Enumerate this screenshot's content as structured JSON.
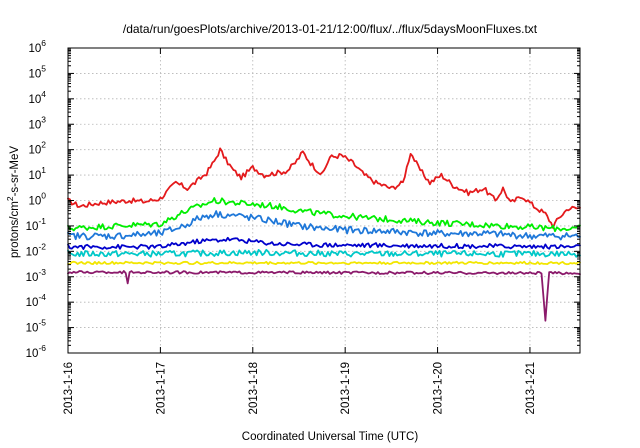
{
  "chart_data": {
    "type": "line",
    "title": "/data/run/goesPlots/archive/2013-01-21/12:00/flux/../flux/5daysMoonFluxes.txt",
    "xlabel": "Coordinated Universal Time (UTC)",
    "ylabel": {
      "base": "protons/cm",
      "sup": "2",
      "rest": "-s-sr-MeV"
    },
    "y_scale": "log",
    "ylim": [
      1e-06,
      1000000.0
    ],
    "xlim": [
      "2013-01-16 00:00",
      "2013-01-21 13:00"
    ],
    "grid": true,
    "legend": "none",
    "x_ticks": [
      "2013-1-16",
      "2013-1-17",
      "2013-1-18",
      "2013-1-19",
      "2013-1-20",
      "2013-1-21"
    ],
    "y_ticks": [
      {
        "base": "10",
        "exp": "-6"
      },
      {
        "base": "10",
        "exp": "-5"
      },
      {
        "base": "10",
        "exp": "-4"
      },
      {
        "base": "10",
        "exp": "-3"
      },
      {
        "base": "10",
        "exp": "-2"
      },
      {
        "base": "10",
        "exp": "-1"
      },
      {
        "base": "10",
        "exp": "0"
      },
      {
        "base": "10",
        "exp": "1"
      },
      {
        "base": "10",
        "exp": "2"
      },
      {
        "base": "10",
        "exp": "3"
      },
      {
        "base": "10",
        "exp": "4"
      },
      {
        "base": "10",
        "exp": "5"
      },
      {
        "base": "10",
        "exp": "6"
      }
    ],
    "series": [
      {
        "color": "#e41a1c",
        "noise": 0.1,
        "points": [
          [
            "2013-01-16 00:00",
            1.0
          ],
          [
            "2013-01-16 03:00",
            0.6
          ],
          [
            "2013-01-16 08:00",
            0.8
          ],
          [
            "2013-01-16 16:00",
            1.0
          ],
          [
            "2013-01-16 20:00",
            0.9
          ],
          [
            "2013-01-17 00:00",
            1.2
          ],
          [
            "2013-01-17 04:00",
            5.0
          ],
          [
            "2013-01-17 07:00",
            3.0
          ],
          [
            "2013-01-17 09:00",
            5.0
          ],
          [
            "2013-01-17 12:00",
            12.0
          ],
          [
            "2013-01-17 14:00",
            35.0
          ],
          [
            "2013-01-17 15:30",
            100.0
          ],
          [
            "2013-01-17 17:00",
            40.0
          ],
          [
            "2013-01-17 19:00",
            15.0
          ],
          [
            "2013-01-17 21:00",
            8.0
          ],
          [
            "2013-01-18 00:00",
            20.0
          ],
          [
            "2013-01-18 03:00",
            10.0
          ],
          [
            "2013-01-18 06:00",
            12.0
          ],
          [
            "2013-01-18 09:00",
            15.0
          ],
          [
            "2013-01-18 11:00",
            30.0
          ],
          [
            "2013-01-18 13:00",
            80.0
          ],
          [
            "2013-01-18 15:00",
            30.0
          ],
          [
            "2013-01-18 18:00",
            10.0
          ],
          [
            "2013-01-18 20:00",
            50.0
          ],
          [
            "2013-01-18 23:00",
            60.0
          ],
          [
            "2013-01-19 02:00",
            30.0
          ],
          [
            "2013-01-19 05:00",
            10.0
          ],
          [
            "2013-01-19 08:00",
            5.0
          ],
          [
            "2013-01-19 12:00",
            3.0
          ],
          [
            "2013-01-19 15:00",
            5.0
          ],
          [
            "2013-01-19 17:00",
            80.0
          ],
          [
            "2013-01-19 19:00",
            20.0
          ],
          [
            "2013-01-19 22:00",
            5.0
          ],
          [
            "2013-01-20 01:00",
            10.0
          ],
          [
            "2013-01-20 04:00",
            4.0
          ],
          [
            "2013-01-20 08:00",
            2.0
          ],
          [
            "2013-01-20 12:00",
            3.0
          ],
          [
            "2013-01-20 15:00",
            1.0
          ],
          [
            "2013-01-20 17:00",
            3.0
          ],
          [
            "2013-01-20 19:00",
            0.8
          ],
          [
            "2013-01-20 22:00",
            1.5
          ],
          [
            "2013-01-21 01:00",
            0.6
          ],
          [
            "2013-01-21 04:00",
            0.3
          ],
          [
            "2013-01-21 06:00",
            0.1
          ],
          [
            "2013-01-21 08:00",
            0.25
          ],
          [
            "2013-01-21 10:00",
            0.5
          ],
          [
            "2013-01-21 13:00",
            0.5
          ]
        ]
      },
      {
        "color": "#00ee00",
        "noise": 0.12,
        "points": [
          [
            "2013-01-16 00:00",
            0.08
          ],
          [
            "2013-01-16 12:00",
            0.1
          ],
          [
            "2013-01-17 00:00",
            0.12
          ],
          [
            "2013-01-17 06:00",
            0.35
          ],
          [
            "2013-01-17 10:00",
            0.6
          ],
          [
            "2013-01-17 14:00",
            1.0
          ],
          [
            "2013-01-17 20:00",
            0.8
          ],
          [
            "2013-01-18 06:00",
            0.6
          ],
          [
            "2013-01-18 12:00",
            0.4
          ],
          [
            "2013-01-18 18:00",
            0.3
          ],
          [
            "2013-01-19 00:00",
            0.25
          ],
          [
            "2013-01-19 06:00",
            0.2
          ],
          [
            "2013-01-19 12:00",
            0.18
          ],
          [
            "2013-01-19 18:00",
            0.15
          ],
          [
            "2013-01-20 06:00",
            0.12
          ],
          [
            "2013-01-20 18:00",
            0.1
          ],
          [
            "2013-01-21 06:00",
            0.08
          ],
          [
            "2013-01-21 13:00",
            0.08
          ]
        ]
      },
      {
        "color": "#1f78d9",
        "noise": 0.14,
        "points": [
          [
            "2013-01-16 00:00",
            0.04
          ],
          [
            "2013-01-16 12:00",
            0.04
          ],
          [
            "2013-01-17 00:00",
            0.05
          ],
          [
            "2013-01-17 06:00",
            0.1
          ],
          [
            "2013-01-17 10:00",
            0.2
          ],
          [
            "2013-01-17 14:00",
            0.3
          ],
          [
            "2013-01-17 20:00",
            0.25
          ],
          [
            "2013-01-18 06:00",
            0.15
          ],
          [
            "2013-01-18 12:00",
            0.1
          ],
          [
            "2013-01-18 18:00",
            0.08
          ],
          [
            "2013-01-19 00:00",
            0.07
          ],
          [
            "2013-01-19 12:00",
            0.06
          ],
          [
            "2013-01-20 00:00",
            0.05
          ],
          [
            "2013-01-20 12:00",
            0.05
          ],
          [
            "2013-01-21 00:00",
            0.04
          ],
          [
            "2013-01-21 13:00",
            0.04
          ]
        ]
      },
      {
        "color": "#0000cc",
        "noise": 0.09,
        "points": [
          [
            "2013-01-16 00:00",
            0.015
          ],
          [
            "2013-01-16 12:00",
            0.015
          ],
          [
            "2013-01-17 00:00",
            0.015
          ],
          [
            "2013-01-17 10:00",
            0.025
          ],
          [
            "2013-01-17 18:00",
            0.03
          ],
          [
            "2013-01-18 06:00",
            0.02
          ],
          [
            "2013-01-18 18:00",
            0.018
          ],
          [
            "2013-01-19 12:00",
            0.017
          ],
          [
            "2013-01-20 12:00",
            0.016
          ],
          [
            "2013-01-21 13:00",
            0.015
          ]
        ]
      },
      {
        "color": "#00c8c8",
        "noise": 0.12,
        "points": [
          [
            "2013-01-16 00:00",
            0.008
          ],
          [
            "2013-01-17 00:00",
            0.008
          ],
          [
            "2013-01-18 00:00",
            0.009
          ],
          [
            "2013-01-19 00:00",
            0.008
          ],
          [
            "2013-01-20 00:00",
            0.008
          ],
          [
            "2013-01-21 13:00",
            0.008
          ]
        ]
      },
      {
        "color": "#f2e600",
        "noise": 0.05,
        "points": [
          [
            "2013-01-16 00:00",
            0.0035
          ],
          [
            "2013-01-17 00:00",
            0.0035
          ],
          [
            "2013-01-18 00:00",
            0.0035
          ],
          [
            "2013-01-19 00:00",
            0.0035
          ],
          [
            "2013-01-20 00:00",
            0.0035
          ],
          [
            "2013-01-21 13:00",
            0.0035
          ]
        ]
      },
      {
        "color": "#8b1a6b",
        "noise": 0.05,
        "points": [
          [
            "2013-01-16 00:00",
            0.0015
          ],
          [
            "2013-01-16 15:00",
            0.0015
          ],
          [
            "2013-01-16 15:30",
            0.0005
          ],
          [
            "2013-01-16 16:00",
            0.0015
          ],
          [
            "2013-01-21 03:00",
            0.0014
          ],
          [
            "2013-01-21 04:00",
            2e-05
          ],
          [
            "2013-01-21 05:00",
            0.0014
          ],
          [
            "2013-01-21 13:00",
            0.0014
          ]
        ]
      }
    ]
  }
}
